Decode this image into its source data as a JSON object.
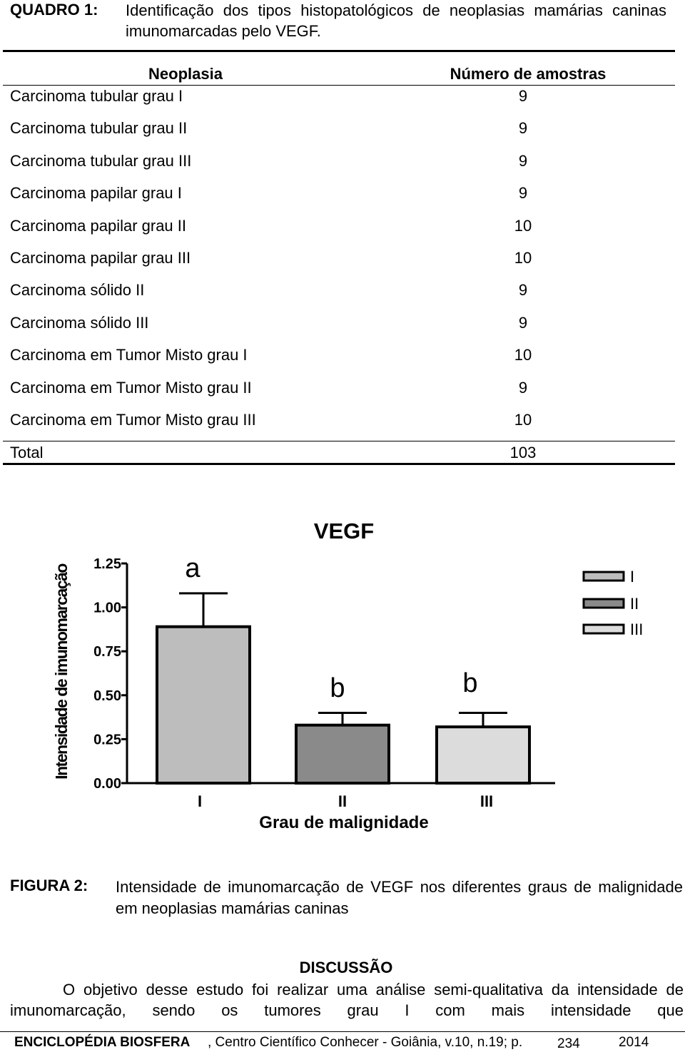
{
  "quadro": {
    "label": "QUADRO 1:",
    "caption": "Identificação dos tipos histopatológicos de neoplasias mamárias caninas imunomarcadas pelo VEGF."
  },
  "table": {
    "headers": [
      "Neoplasia",
      "Número de amostras"
    ],
    "rows": [
      [
        "Carcinoma tubular grau I",
        "9"
      ],
      [
        "Carcinoma tubular grau II",
        "9"
      ],
      [
        "Carcinoma tubular grau III",
        "9"
      ],
      [
        "Carcinoma papilar grau I",
        "9"
      ],
      [
        "Carcinoma papilar grau II",
        "10"
      ],
      [
        "Carcinoma papilar grau III",
        "10"
      ],
      [
        "Carcinoma sólido II",
        "9"
      ],
      [
        "Carcinoma sólido III",
        "9"
      ],
      [
        "Carcinoma em Tumor Misto grau I",
        "10"
      ],
      [
        "Carcinoma em Tumor Misto grau II",
        "9"
      ],
      [
        "Carcinoma em Tumor Misto grau III",
        "10"
      ]
    ],
    "total": [
      "Total",
      "103"
    ]
  },
  "chart_data": {
    "type": "bar",
    "title": "VEGF",
    "y_label": "Intensidade de imunomarcação",
    "x_label": "Grau de malignidade",
    "categories": [
      "I",
      "II",
      "III"
    ],
    "values": [
      0.89,
      0.33,
      0.32
    ],
    "errors": [
      0.19,
      0.07,
      0.08
    ],
    "annotations": [
      "a",
      "b",
      "b"
    ],
    "colors": [
      "#bdbdbd",
      "#8a8a8a",
      "#dcdcdc"
    ],
    "ylim": [
      0,
      1.25
    ],
    "yticks": [
      {
        "value": 0,
        "label": "0.00"
      },
      0.25,
      {
        "value": 0.5,
        "label": "0.50"
      },
      0.75,
      {
        "value": 1,
        "label": "1.00"
      },
      1.25
    ]
  },
  "figure": {
    "label": "FIGURA 2:",
    "caption": "Intensidade de imunomarcação de VEGF nos diferentes graus de malignidade em neoplasias mamárias caninas"
  },
  "discussion": {
    "heading": "DISCUSSÃO",
    "text": "O objetivo desse estudo foi realizar uma análise semi-qualitativa da intensidade de imunomarcação, sendo os tumores grau I com mais intensidade que"
  },
  "footer": {
    "journal": "ENCICLOPÉDIA BIOSFERA",
    "details": ", Centro Científico Conhecer - Goiânia, v.10, n.19; p.",
    "page": "234",
    "year": "2014"
  }
}
